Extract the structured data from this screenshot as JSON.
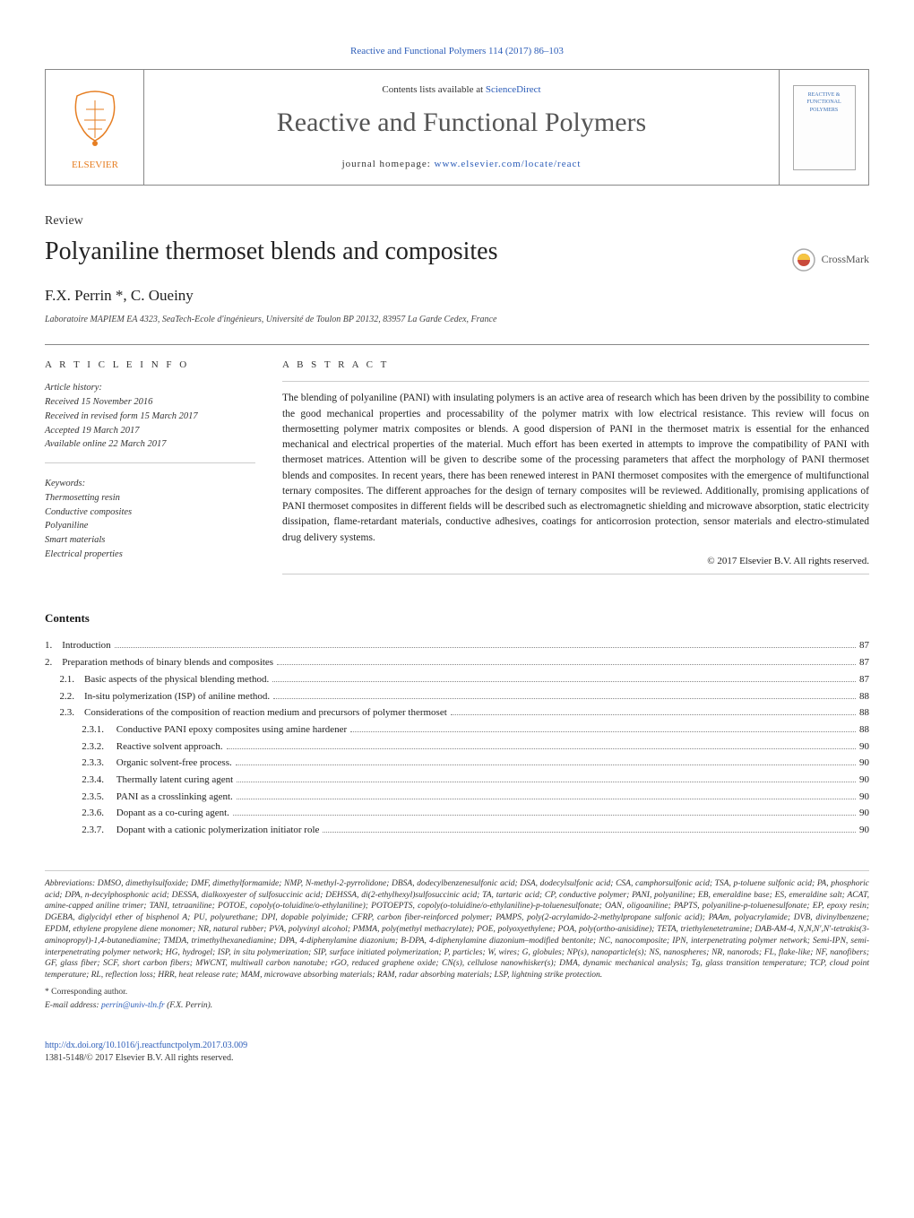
{
  "journal_ref": "Reactive and Functional Polymers 114 (2017) 86–103",
  "header": {
    "contents_line_prefix": "Contents lists available at ",
    "contents_line_link": "ScienceDirect",
    "journal_name": "Reactive and Functional Polymers",
    "homepage_prefix": "journal homepage: ",
    "homepage_link": "www.elsevier.com/locate/react",
    "thumb_line1": "REACTIVE &",
    "thumb_line2": "FUNCTIONAL",
    "thumb_line3": "POLYMERS"
  },
  "article_type": "Review",
  "article_title": "Polyaniline thermoset blends and composites",
  "crossmark_label": "CrossMark",
  "authors": "F.X. Perrin *, C. Oueiny",
  "affiliation": "Laboratoire MAPIEM EA 4323, SeaTech-Ecole d'ingénieurs, Université de Toulon BP 20132, 83957 La Garde Cedex, France",
  "info": {
    "header": "A R T I C L E   I N F O",
    "history_title": "Article history:",
    "received": "Received 15 November 2016",
    "revised": "Received in revised form 15 March 2017",
    "accepted": "Accepted 19 March 2017",
    "online": "Available online 22 March 2017",
    "keywords_title": "Keywords:",
    "keywords": [
      "Thermosetting resin",
      "Conductive composites",
      "Polyaniline",
      "Smart materials",
      "Electrical properties"
    ]
  },
  "abstract": {
    "header": "A B S T R A C T",
    "text": "The blending of polyaniline (PANI) with insulating polymers is an active area of research which has been driven by the possibility to combine the good mechanical properties and processability of the polymer matrix with low electrical resistance. This review will focus on thermosetting polymer matrix composites or blends. A good dispersion of PANI in the thermoset matrix is essential for the enhanced mechanical and electrical properties of the material. Much effort has been exerted in attempts to improve the compatibility of PANI with thermoset matrices. Attention will be given to describe some of the processing parameters that affect the morphology of PANI thermoset blends and composites. In recent years, there has been renewed interest in PANI thermoset composites with the emergence of multifunctional ternary composites. The different approaches for the design of ternary composites will be reviewed. Additionally, promising applications of PANI thermoset composites in different fields will be described such as electromagnetic shielding and microwave absorption, static electricity dissipation, flame-retardant materials, conductive adhesives, coatings for anticorrosion protection, sensor materials and electro-stimulated drug delivery systems.",
    "copyright": "© 2017 Elsevier B.V. All rights reserved."
  },
  "contents_header": "Contents",
  "toc": [
    {
      "num": "1.    ",
      "label": "Introduction",
      "page": "87"
    },
    {
      "num": "2.    ",
      "label": "Preparation methods of binary blends and composites",
      "page": "87"
    },
    {
      "num": "      2.1.    ",
      "label": "Basic aspects of the physical blending method.",
      "page": "87"
    },
    {
      "num": "      2.2.    ",
      "label": "In-situ polymerization (ISP) of aniline method.",
      "page": "88"
    },
    {
      "num": "      2.3.    ",
      "label": "Considerations of the composition of reaction medium and precursors of polymer thermoset",
      "page": "88"
    },
    {
      "num": "               2.3.1.     ",
      "label": "Conductive PANI epoxy composites using amine hardener",
      "page": "88"
    },
    {
      "num": "               2.3.2.     ",
      "label": "Reactive solvent approach.",
      "page": "90"
    },
    {
      "num": "               2.3.3.     ",
      "label": "Organic solvent-free process.",
      "page": "90"
    },
    {
      "num": "               2.3.4.     ",
      "label": "Thermally latent curing agent",
      "page": "90"
    },
    {
      "num": "               2.3.5.     ",
      "label": "PANI as a crosslinking agent.",
      "page": "90"
    },
    {
      "num": "               2.3.6.     ",
      "label": "Dopant as a co-curing agent.",
      "page": "90"
    },
    {
      "num": "               2.3.7.     ",
      "label": "Dopant with a cationic polymerization initiator role",
      "page": "90"
    }
  ],
  "abbrev": "Abbreviations: DMSO, dimethylsulfoxide; DMF, dimethylformamide; NMP, N-methyl-2-pyrrolidone; DBSA, dodecylbenzenesulfonic acid; DSA, dodecylsulfonic acid; CSA, camphorsulfonic acid; TSA, p-toluene sulfonic acid; PA, phosphoric acid; DPA, n-decylphosphonic acid; DESSA, dialkoxyester of sulfosuccinic acid; DEHSSA, di(2-ethylhexyl)sulfosuccinic acid; TA, tartaric acid; CP, conductive polymer; PANI, polyaniline; EB, emeraldine base; ES, emeraldine salt; ACAT, amine-capped aniline trimer; TANI, tetraaniline; POTOE, copoly(o-toluidine/o-ethylaniline); POTOEPTS, copoly(o-toluidine/o-ethylaniline)-p-toluenesulfonate; OAN, oligoaniline; PAPTS, polyaniline-p-toluenesulfonate; EP, epoxy resin; DGEBA, diglycidyl ether of bisphenol A; PU, polyurethane; DPI, dopable polyimide; CFRP, carbon fiber-reinforced polymer; PAMPS, poly(2-acrylamido-2-methylpropane sulfonic acid); PAAm, polyacrylamide; DVB, divinylbenzene; EPDM, ethylene propylene diene monomer; NR, natural rubber; PVA, polyvinyl alcohol; PMMA, poly(methyl methacrylate); POE, polyoxyethylene; POA, poly(ortho-anisidine); TETA, triethylenetetramine; DAB-AM-4, N,N,N′,N′-tetrakis(3-aminopropyl)-1,4-butanediamine; TMDA, trimethylhexanediamine; DPA, 4-diphenylamine diazonium; B-DPA, 4-diphenylamine diazonium–modified bentonite; NC, nanocomposite; IPN, interpenetrating polymer network; Semi-IPN, semi-interpenetrating polymer network; HG, hydrogel; ISP, in situ polymerization; SIP, surface initiated polymerization; P, particles; W, wires; G, globules; NP(s), nanoparticle(s); NS, nanospheres; NR, nanorods; FL, flake-like; NF, nanofibers; GF, glass fiber; SCF, short carbon fibers; MWCNT, multiwall carbon nanotube; rGO, reduced graphene oxide; CN(s), cellulose nanowhisker(s); DMA, dynamic mechanical analysis; Tg, glass transition temperature; TCP, cloud point temperature; RL, reflection loss; HRR, heat release rate; MAM, microwave absorbing materials; RAM, radar absorbing materials; LSP, lightning strike protection.",
  "corresponding": "* Corresponding author.",
  "email_prefix": "E-mail address: ",
  "email": "perrin@univ-tln.fr",
  "email_suffix": " (F.X. Perrin).",
  "footer": {
    "doi": "http://dx.doi.org/10.1016/j.reactfunctpolym.2017.03.009",
    "issn": "1381-5148/© 2017 Elsevier B.V. All rights reserved."
  }
}
